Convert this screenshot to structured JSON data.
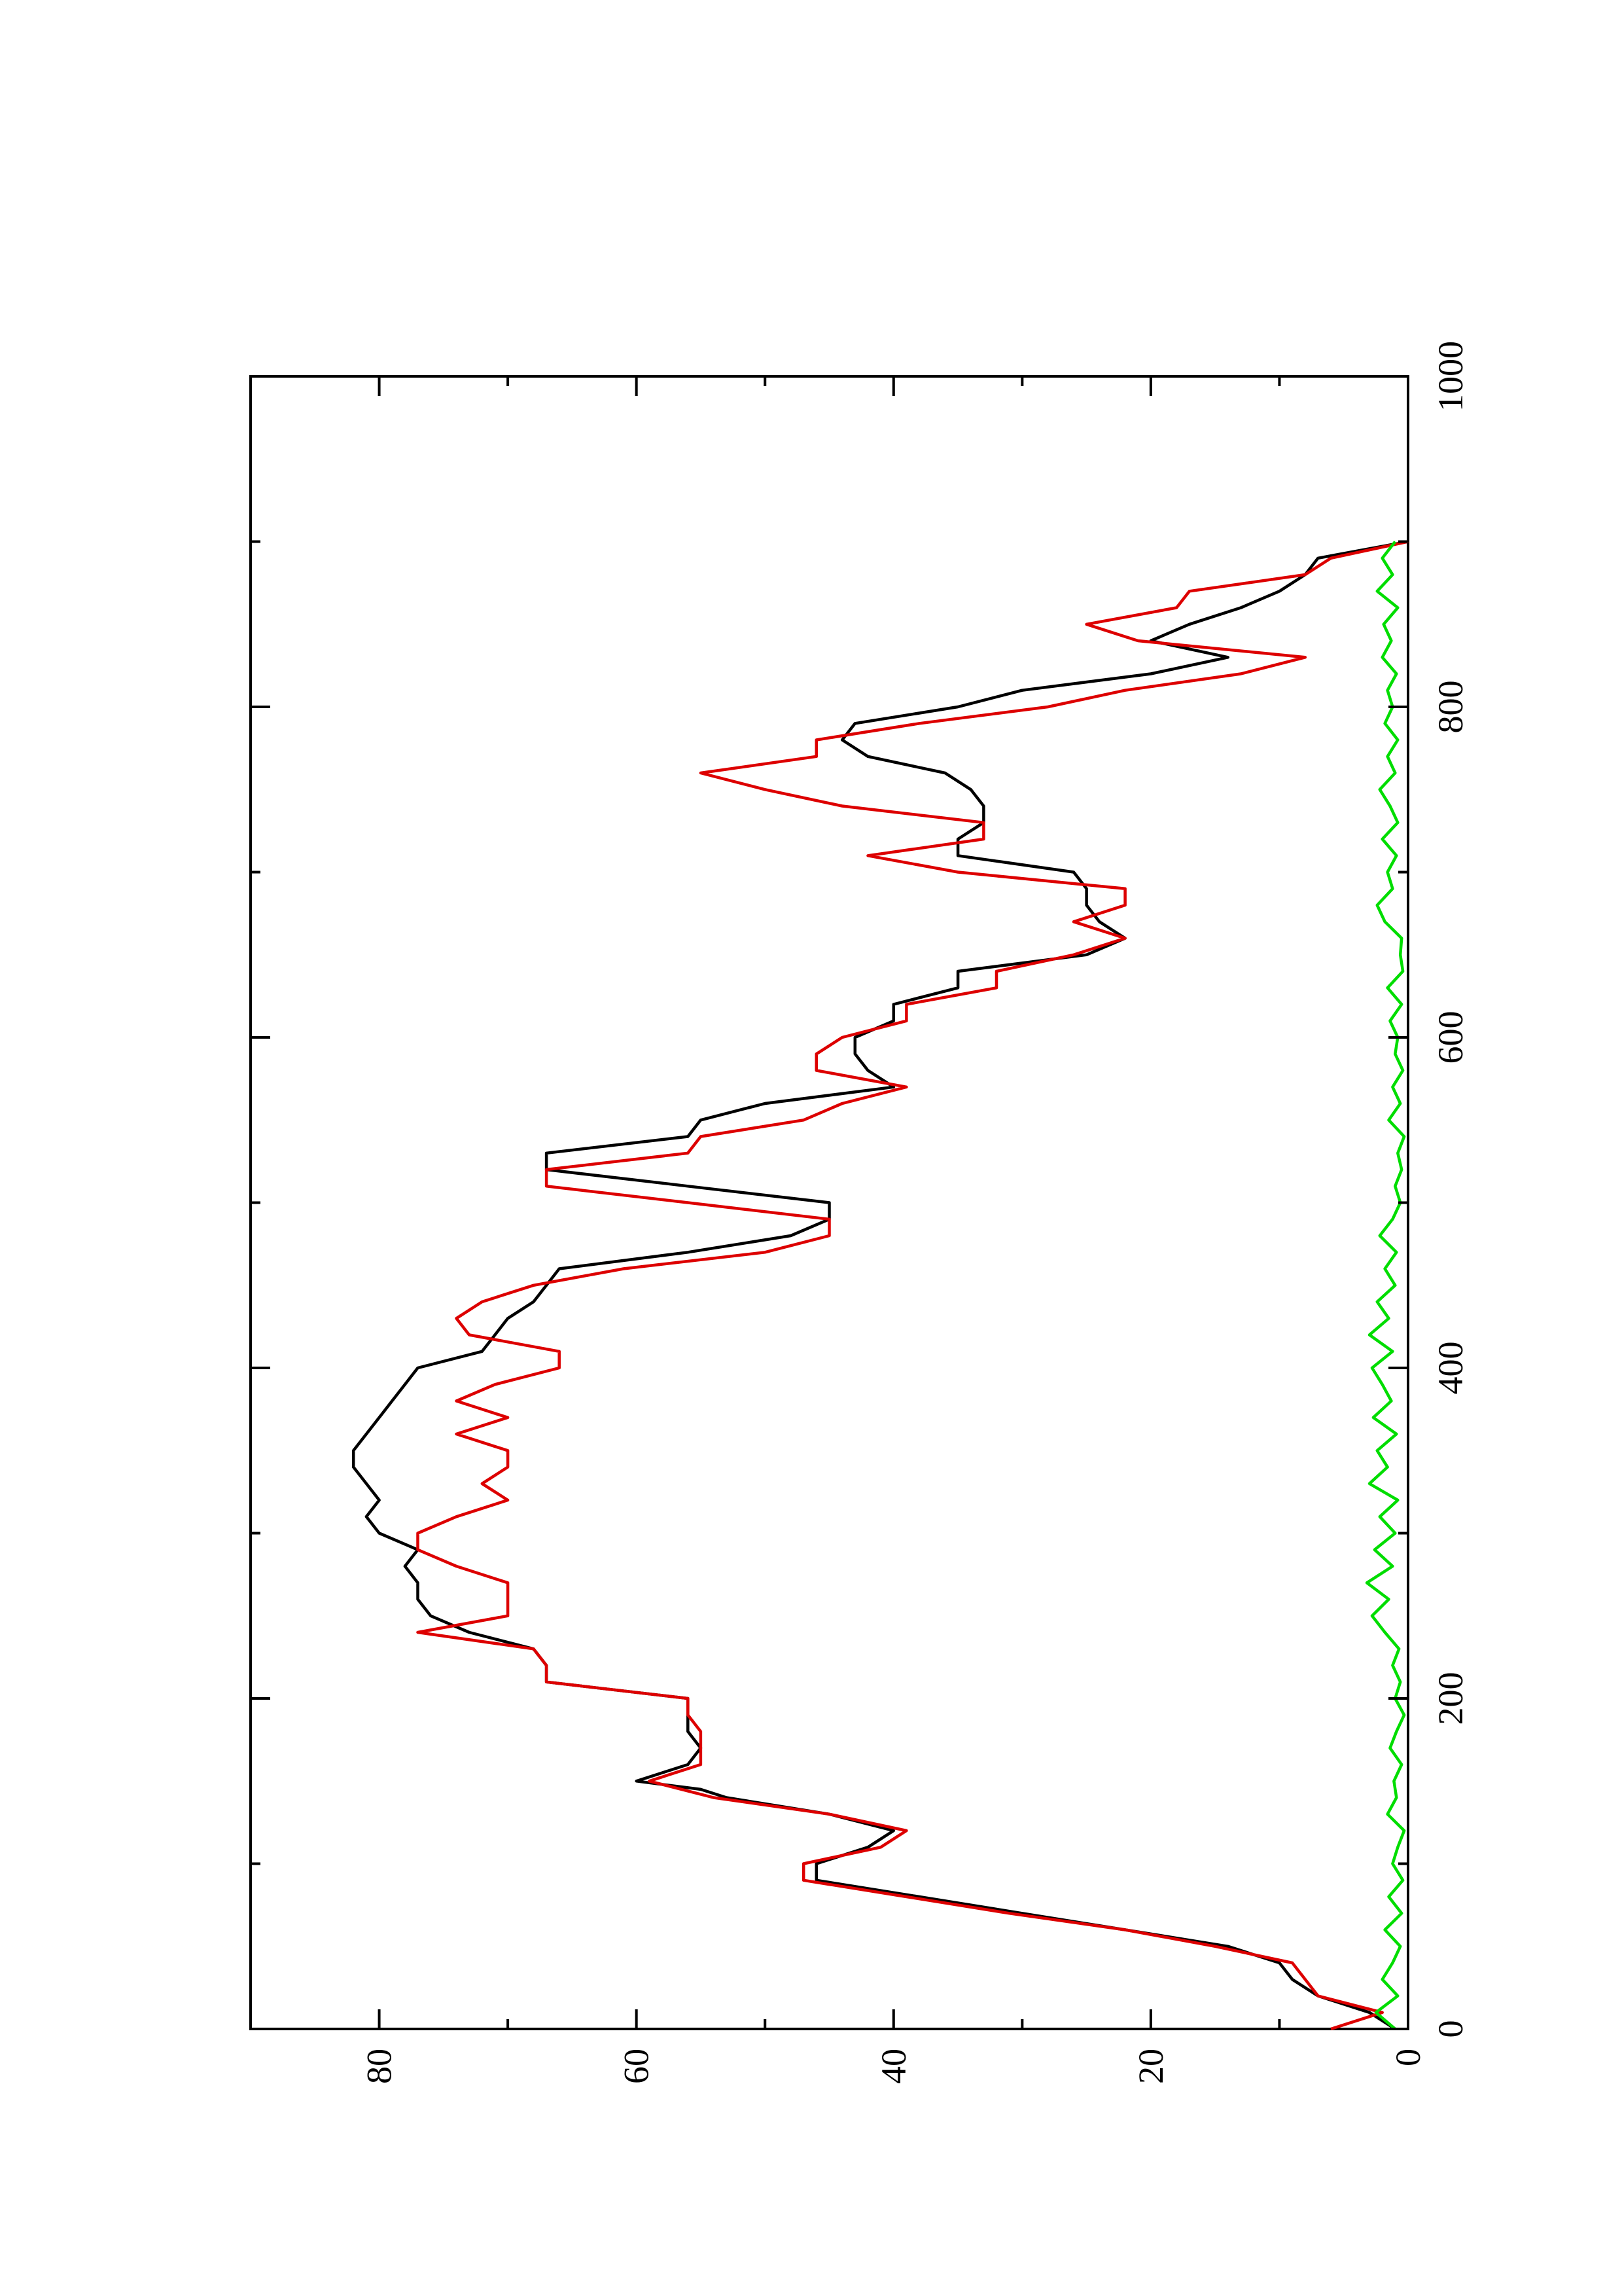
{
  "chart_data": {
    "type": "line",
    "orientation": "rotated-90-ccw",
    "title": "",
    "xlabel": "",
    "ylabel": "",
    "xlim": [
      0,
      1000
    ],
    "ylim": [
      0,
      90
    ],
    "grid": false,
    "legend": "none",
    "x_ticks": [
      0,
      200,
      400,
      600,
      800,
      1000
    ],
    "x_tick_labels": [
      "0",
      "200",
      "400",
      "600",
      "800",
      "1000"
    ],
    "x_minor_ticks": [
      100,
      300,
      500,
      700,
      900
    ],
    "y_ticks": [
      0,
      20,
      40,
      60,
      80
    ],
    "y_tick_labels": [
      "0",
      "20",
      "40",
      "60",
      "80"
    ],
    "y_minor_ticks": [
      10,
      30,
      50,
      70
    ],
    "series": [
      {
        "color": "#000000",
        "x": [
          0,
          10,
          20,
          30,
          40,
          50,
          60,
          70,
          80,
          90,
          100,
          110,
          120,
          130,
          140,
          145,
          150,
          155,
          160,
          170,
          180,
          190,
          200,
          210,
          220,
          230,
          240,
          250,
          260,
          270,
          280,
          290,
          300,
          310,
          320,
          330,
          340,
          350,
          360,
          370,
          380,
          390,
          400,
          410,
          420,
          430,
          440,
          450,
          460,
          470,
          480,
          490,
          500,
          510,
          520,
          530,
          540,
          550,
          560,
          570,
          580,
          590,
          600,
          610,
          620,
          630,
          640,
          650,
          660,
          670,
          680,
          690,
          700,
          710,
          720,
          730,
          740,
          750,
          760,
          770,
          780,
          790,
          800,
          810,
          820,
          830,
          840,
          850,
          860,
          870,
          880,
          890,
          900
        ],
        "y": [
          1,
          3,
          7,
          9,
          10,
          14,
          22,
          30,
          38,
          46,
          46,
          42,
          40,
          45,
          53,
          55,
          60,
          58,
          56,
          55,
          56,
          56,
          56,
          67,
          67,
          68,
          73,
          76,
          77,
          77,
          78,
          77,
          80,
          81,
          80,
          81,
          82,
          82,
          81,
          80,
          79,
          78,
          77,
          72,
          71,
          70,
          68,
          67,
          66,
          56,
          48,
          45,
          45,
          56,
          67,
          67,
          56,
          55,
          50,
          40,
          42,
          43,
          43,
          40,
          40,
          35,
          35,
          25,
          22,
          24,
          25,
          25,
          26,
          35,
          35,
          33,
          33,
          34,
          36,
          42,
          44,
          43,
          35,
          30,
          20,
          14,
          20,
          17,
          13,
          10,
          8,
          7,
          0
        ]
      },
      {
        "color": "#dd0000",
        "x": [
          0,
          10,
          20,
          30,
          40,
          50,
          60,
          70,
          80,
          90,
          100,
          110,
          120,
          130,
          140,
          150,
          160,
          170,
          180,
          190,
          200,
          210,
          220,
          230,
          240,
          250,
          260,
          270,
          280,
          290,
          300,
          310,
          320,
          330,
          340,
          350,
          360,
          370,
          380,
          390,
          400,
          410,
          420,
          430,
          440,
          450,
          460,
          470,
          480,
          490,
          500,
          510,
          520,
          530,
          540,
          550,
          560,
          570,
          580,
          590,
          600,
          610,
          620,
          630,
          640,
          650,
          660,
          670,
          680,
          690,
          700,
          710,
          720,
          730,
          740,
          750,
          760,
          770,
          780,
          790,
          800,
          810,
          820,
          830,
          840,
          850,
          860,
          870,
          880,
          890,
          900
        ],
        "y": [
          6,
          2,
          7,
          8,
          9,
          15,
          22,
          31,
          39,
          47,
          47,
          41,
          39,
          45,
          54,
          59,
          55,
          55,
          55,
          56,
          56,
          67,
          67,
          68,
          77,
          70,
          70,
          70,
          74,
          77,
          77,
          74,
          70,
          72,
          70,
          70,
          74,
          70,
          74,
          71,
          66,
          66,
          73,
          74,
          72,
          68,
          61,
          50,
          45,
          45,
          56,
          67,
          67,
          56,
          55,
          47,
          44,
          39,
          46,
          46,
          44,
          39,
          39,
          32,
          32,
          26,
          22,
          26,
          22,
          22,
          35,
          42,
          33,
          33,
          44,
          50,
          55,
          46,
          46,
          38,
          28,
          22,
          13,
          8,
          21,
          25,
          18,
          17,
          8,
          6,
          0
        ]
      },
      {
        "color": "#00dd00",
        "x": [
          0,
          10,
          20,
          30,
          40,
          50,
          60,
          70,
          80,
          90,
          100,
          110,
          120,
          130,
          140,
          150,
          160,
          170,
          180,
          190,
          200,
          210,
          220,
          230,
          240,
          250,
          260,
          270,
          280,
          290,
          300,
          310,
          320,
          330,
          340,
          350,
          360,
          370,
          380,
          390,
          400,
          410,
          420,
          430,
          440,
          450,
          460,
          470,
          480,
          490,
          500,
          510,
          520,
          530,
          540,
          550,
          560,
          570,
          580,
          590,
          600,
          610,
          620,
          630,
          640,
          650,
          660,
          670,
          680,
          690,
          700,
          710,
          720,
          730,
          740,
          750,
          760,
          770,
          780,
          790,
          800,
          810,
          820,
          830,
          840,
          850,
          860,
          870,
          880,
          890,
          900
        ],
        "y": [
          1.0,
          2.5,
          0.8,
          2.0,
          1.2,
          0.6,
          1.8,
          0.5,
          1.5,
          0.4,
          1.2,
          0.8,
          0.3,
          1.6,
          0.9,
          1.1,
          0.5,
          1.4,
          0.9,
          0.3,
          1.0,
          0.6,
          1.2,
          0.7,
          1.8,
          2.8,
          1.5,
          3.2,
          1.2,
          2.6,
          1.0,
          2.2,
          0.8,
          3.0,
          1.6,
          2.4,
          0.9,
          2.7,
          1.3,
          2.0,
          2.8,
          1.2,
          3.0,
          1.5,
          2.4,
          1.0,
          1.8,
          0.9,
          2.2,
          1.2,
          0.6,
          1.0,
          0.5,
          0.8,
          0.3,
          1.5,
          0.6,
          1.2,
          0.4,
          1.0,
          0.8,
          1.4,
          0.5,
          1.6,
          0.4,
          0.6,
          0.5,
          1.8,
          2.4,
          1.2,
          1.6,
          0.9,
          2.0,
          0.8,
          1.4,
          2.2,
          1.0,
          1.6,
          0.8,
          1.8,
          1.2,
          1.6,
          0.9,
          2.0,
          1.3,
          1.9,
          0.8,
          2.4,
          1.2,
          2.0,
          1.0
        ]
      }
    ]
  }
}
